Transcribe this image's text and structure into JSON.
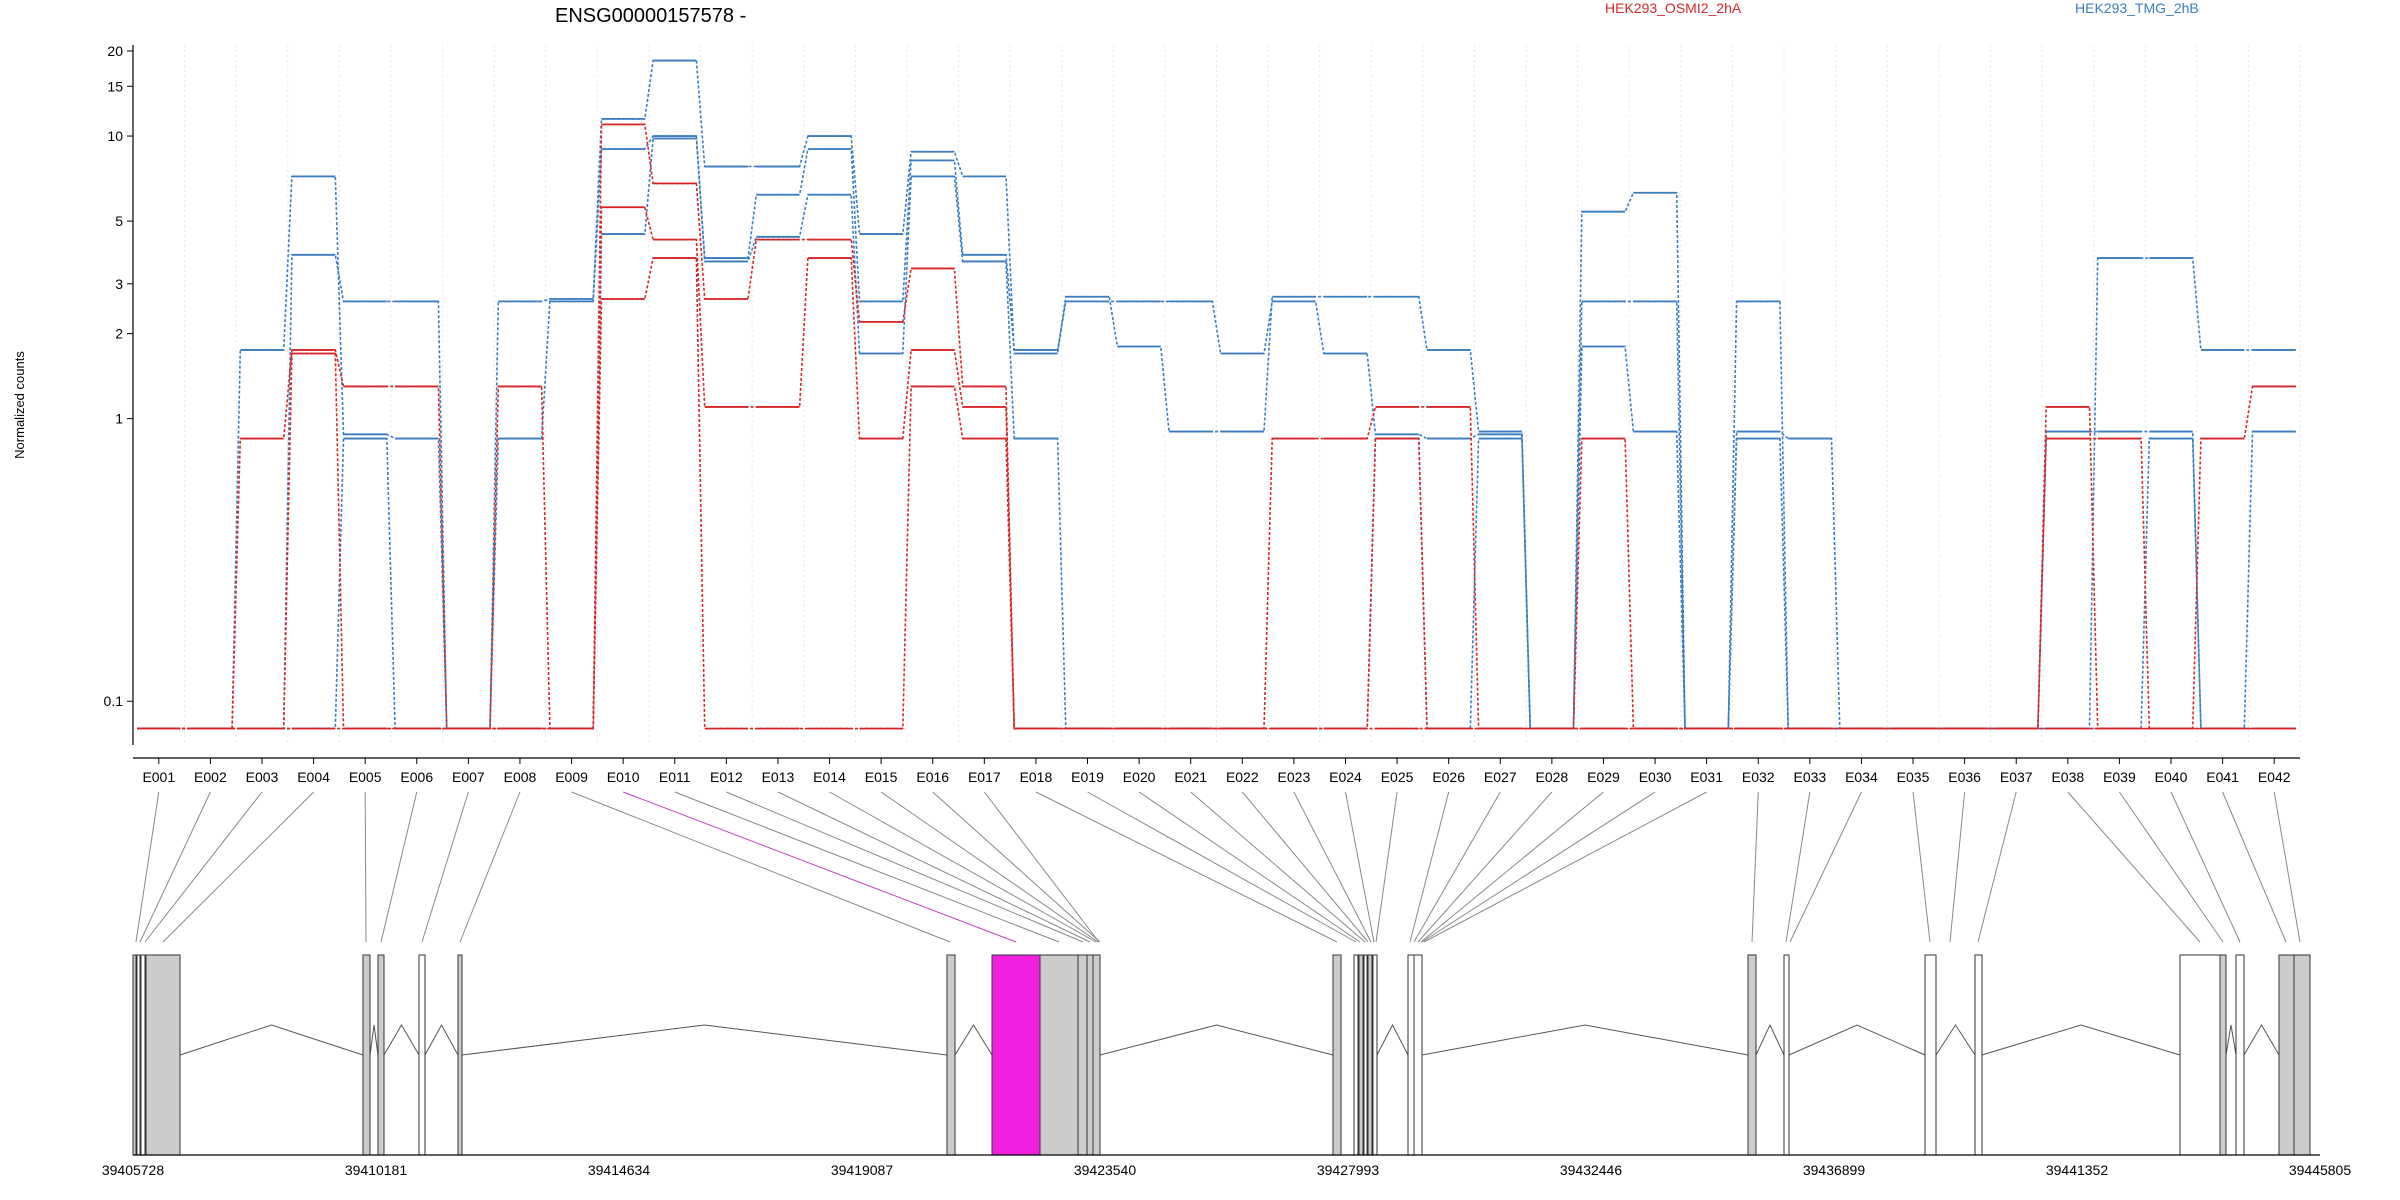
{
  "chart_data": {
    "type": "line",
    "title": "ENSG00000157578 -",
    "ylabel": "Normalized counts",
    "yscale": "log",
    "ylim": [
      0.07,
      21
    ],
    "yticks": [
      0.1,
      1,
      2,
      3,
      5,
      10,
      15,
      20
    ],
    "ytick_labels": [
      "0.1",
      "1",
      "2",
      "3",
      "5",
      "10",
      "15",
      "20"
    ],
    "grid": "vertical-dotted",
    "categories": [
      "E001",
      "E002",
      "E003",
      "E004",
      "E005",
      "E006",
      "E007",
      "E008",
      "E009",
      "E010",
      "E011",
      "E012",
      "E013",
      "E014",
      "E015",
      "E016",
      "E017",
      "E018",
      "E019",
      "E020",
      "E021",
      "E022",
      "E023",
      "E024",
      "E025",
      "E026",
      "E027",
      "E028",
      "E029",
      "E030",
      "E031",
      "E032",
      "E033",
      "E034",
      "E035",
      "E036",
      "E037",
      "E038",
      "E039",
      "E040",
      "E041",
      "E042"
    ],
    "legend": [
      {
        "label": "HEK293_OSMI2_2hA",
        "color": "#d62728",
        "position": "top-center"
      },
      {
        "label": "HEK293_TMG_2hB",
        "color": "#3a7dbf",
        "position": "top-right"
      }
    ],
    "series": [
      {
        "group": "HEK293_TMG_2hB",
        "color": "#3a7dbf",
        "values": [
          0.08,
          0.08,
          1.75,
          7.2,
          0.88,
          0.85,
          0.08,
          2.6,
          2.65,
          11.5,
          18.5,
          7.8,
          7.8,
          10.0,
          4.5,
          8.8,
          7.2,
          1.7,
          2.7,
          1.8,
          0.9,
          0.9,
          2.7,
          2.7,
          2.7,
          1.75,
          0.9,
          0.08,
          5.4,
          6.3,
          0.08,
          0.9,
          0.85,
          0.08,
          0.08,
          0.08,
          0.08,
          0.9,
          0.9,
          0.9,
          0.08,
          0.9
        ]
      },
      {
        "group": "HEK293_TMG_2hB",
        "color": "#3a7dbf",
        "values": [
          0.08,
          0.08,
          0.08,
          3.8,
          2.6,
          2.6,
          0.08,
          0.85,
          2.6,
          9.0,
          10.0,
          3.7,
          6.2,
          9.0,
          2.6,
          8.2,
          3.8,
          1.75,
          2.6,
          2.6,
          2.6,
          1.7,
          2.6,
          1.7,
          0.88,
          0.85,
          0.88,
          0.08,
          1.8,
          0.9,
          0.08,
          0.85,
          0.08,
          0.08,
          0.08,
          0.08,
          0.08,
          0.08,
          3.7,
          3.7,
          1.75,
          1.75
        ]
      },
      {
        "group": "HEK293_TMG_2hB",
        "color": "#3a7dbf",
        "values": [
          0.08,
          0.08,
          0.08,
          0.08,
          0.85,
          0.08,
          0.08,
          0.08,
          0.08,
          4.5,
          9.8,
          3.6,
          4.4,
          6.2,
          1.7,
          7.2,
          3.6,
          0.85,
          0.08,
          0.08,
          0.08,
          0.08,
          0.08,
          0.08,
          0.85,
          0.08,
          0.85,
          0.08,
          2.6,
          2.6,
          0.08,
          2.6,
          0.08,
          0.08,
          0.08,
          0.08,
          0.08,
          0.08,
          0.08,
          0.85,
          0.08,
          0.08
        ]
      },
      {
        "group": "HEK293_OSMI2_2hA",
        "color": "#d62728",
        "values": [
          0.08,
          0.08,
          0.85,
          1.75,
          1.3,
          1.3,
          0.08,
          1.3,
          0.08,
          11.0,
          6.8,
          2.65,
          4.3,
          4.3,
          2.2,
          3.4,
          1.3,
          0.08,
          0.08,
          0.08,
          0.08,
          0.08,
          0.85,
          0.85,
          1.1,
          1.1,
          0.08,
          0.08,
          0.85,
          0.08,
          0.08,
          0.08,
          0.08,
          0.08,
          0.08,
          0.08,
          0.08,
          1.1,
          0.08,
          0.08,
          0.85,
          1.3
        ]
      },
      {
        "group": "HEK293_OSMI2_2hA",
        "color": "#d62728",
        "values": [
          0.08,
          0.08,
          0.08,
          1.7,
          0.08,
          0.08,
          0.08,
          0.08,
          0.08,
          5.6,
          4.3,
          1.1,
          1.1,
          3.7,
          0.85,
          1.75,
          1.1,
          0.08,
          0.08,
          0.08,
          0.08,
          0.08,
          0.08,
          0.08,
          0.85,
          0.08,
          0.08,
          0.08,
          0.08,
          0.08,
          0.08,
          0.08,
          0.08,
          0.08,
          0.08,
          0.08,
          0.08,
          0.85,
          0.85,
          0.08,
          0.08,
          0.08
        ]
      },
      {
        "group": "HEK293_OSMI2_2hA",
        "color": "#d62728",
        "values": [
          0.08,
          0.08,
          0.08,
          0.08,
          0.08,
          0.08,
          0.08,
          0.08,
          0.08,
          2.65,
          3.7,
          0.08,
          0.08,
          0.08,
          0.08,
          1.3,
          0.85,
          0.08,
          0.08,
          0.08,
          0.08,
          0.08,
          0.08,
          0.08,
          0.08,
          0.08,
          0.08,
          0.08,
          0.08,
          0.08,
          0.08,
          0.08,
          0.08,
          0.08,
          0.08,
          0.08,
          0.08,
          0.08,
          0.08,
          0.08,
          0.08,
          0.08
        ]
      }
    ],
    "gene_model": {
      "coordinate_labels": [
        "39405728",
        "39410181",
        "39414634",
        "39419087",
        "39423540",
        "39427993",
        "39432446",
        "39436899",
        "39441352",
        "39445805"
      ],
      "highlighted_exon": "E010",
      "highlight_color": "#f020e0"
    }
  }
}
